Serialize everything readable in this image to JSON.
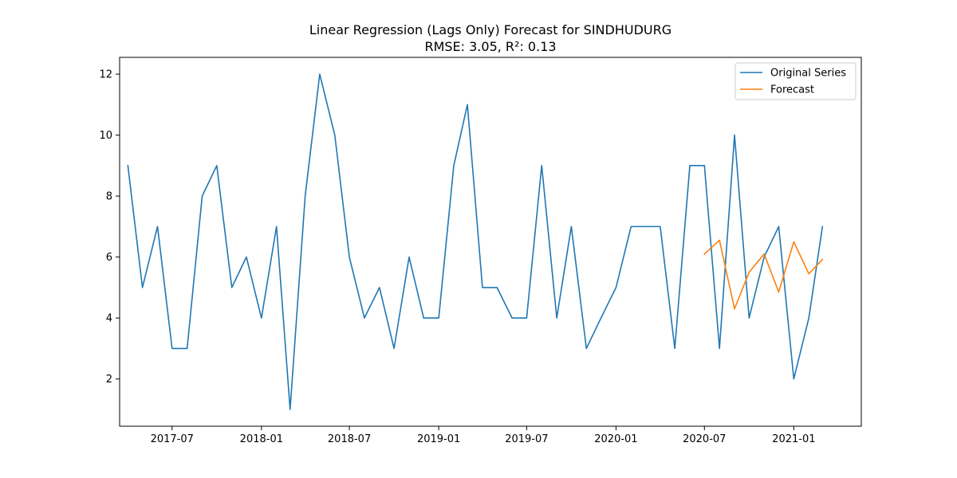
{
  "chart_data": {
    "type": "line",
    "title": "Linear Regression (Lags Only) Forecast for SINDHUDURG",
    "subtitle": "RMSE: 3.05, R²: 0.13",
    "xlabel": "",
    "ylabel": "",
    "x_domain": [
      "2017-03-15",
      "2021-05-20"
    ],
    "ylim": [
      0.45,
      12.55
    ],
    "x_ticks": [
      {
        "date": "2017-07-01",
        "label": "2017-07"
      },
      {
        "date": "2018-01-01",
        "label": "2018-01"
      },
      {
        "date": "2018-07-01",
        "label": "2018-07"
      },
      {
        "date": "2019-01-01",
        "label": "2019-01"
      },
      {
        "date": "2019-07-01",
        "label": "2019-07"
      },
      {
        "date": "2020-01-01",
        "label": "2020-01"
      },
      {
        "date": "2020-07-01",
        "label": "2020-07"
      },
      {
        "date": "2021-01-01",
        "label": "2021-01"
      }
    ],
    "y_ticks": [
      2,
      4,
      6,
      8,
      10,
      12
    ],
    "grid": false,
    "legend_position": "top-right",
    "series": [
      {
        "name": "Original Series",
        "color": "#1f77b4",
        "x": [
          "2017-04-01",
          "2017-05-01",
          "2017-06-01",
          "2017-07-01",
          "2017-08-01",
          "2017-09-01",
          "2017-10-01",
          "2017-11-01",
          "2017-12-01",
          "2018-01-01",
          "2018-02-01",
          "2018-03-01",
          "2018-04-01",
          "2018-05-01",
          "2018-06-01",
          "2018-07-01",
          "2018-08-01",
          "2018-09-01",
          "2018-10-01",
          "2018-11-01",
          "2018-12-01",
          "2019-01-01",
          "2019-02-01",
          "2019-03-01",
          "2019-04-01",
          "2019-05-01",
          "2019-06-01",
          "2019-07-01",
          "2019-08-01",
          "2019-09-01",
          "2019-10-01",
          "2019-11-01",
          "2019-12-01",
          "2020-01-01",
          "2020-02-01",
          "2020-03-01",
          "2020-04-01",
          "2020-05-01",
          "2020-06-01",
          "2020-07-01",
          "2020-08-01",
          "2020-09-01",
          "2020-10-01",
          "2020-11-01",
          "2020-12-01",
          "2021-01-01",
          "2021-02-01",
          "2021-03-01"
        ],
        "values": [
          9,
          5,
          7,
          3,
          3,
          8,
          9,
          5,
          6,
          4,
          7,
          1,
          8,
          12,
          10,
          6,
          4,
          5,
          3,
          6,
          4,
          4,
          9,
          11,
          5,
          5,
          4,
          4,
          9,
          4,
          7,
          3,
          4,
          5,
          7,
          7,
          7,
          3,
          9,
          9,
          3,
          10,
          4,
          6,
          7,
          2,
          4,
          7
        ]
      },
      {
        "name": "Forecast",
        "color": "#ff7f0e",
        "x": [
          "2020-07-01",
          "2020-08-01",
          "2020-09-01",
          "2020-10-01",
          "2020-11-01",
          "2020-12-01",
          "2021-01-01",
          "2021-02-01",
          "2021-03-01"
        ],
        "values": [
          6.1,
          6.55,
          4.3,
          5.5,
          6.1,
          4.85,
          6.5,
          5.45,
          5.92
        ]
      }
    ]
  }
}
